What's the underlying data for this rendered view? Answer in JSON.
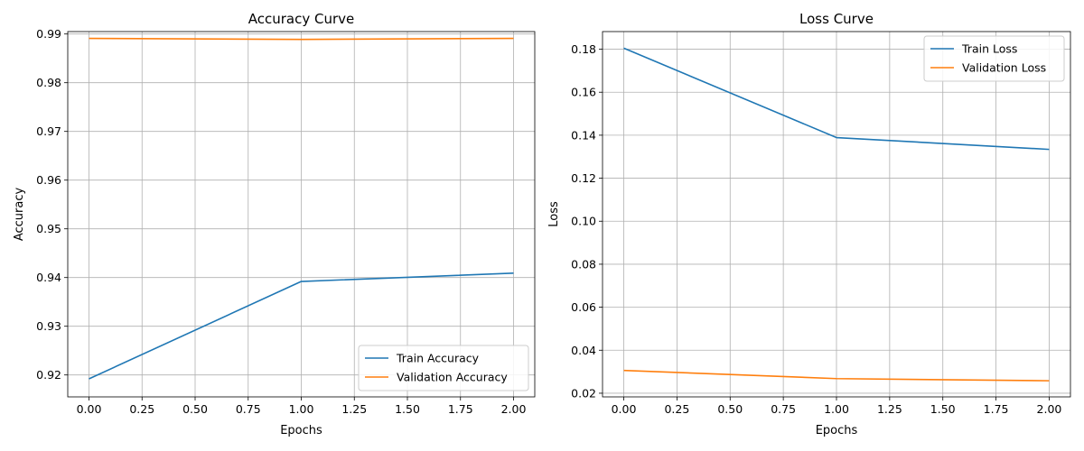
{
  "chart_data": [
    {
      "type": "line",
      "title": "Accuracy Curve",
      "xlabel": "Epochs",
      "ylabel": "Accuracy",
      "xlim": [
        -0.1,
        2.1
      ],
      "ylim": [
        0.9155,
        0.9905
      ],
      "xticks": [
        0.0,
        0.25,
        0.5,
        0.75,
        1.0,
        1.25,
        1.5,
        1.75,
        2.0
      ],
      "xtick_labels": [
        "0.00",
        "0.25",
        "0.50",
        "0.75",
        "1.00",
        "1.25",
        "1.50",
        "1.75",
        "2.00"
      ],
      "yticks": [
        0.92,
        0.93,
        0.94,
        0.95,
        0.96,
        0.97,
        0.98,
        0.99
      ],
      "ytick_labels": [
        "0.92",
        "0.93",
        "0.94",
        "0.95",
        "0.96",
        "0.97",
        "0.98",
        "0.99"
      ],
      "grid": true,
      "legend_position": "lower right",
      "x": [
        0,
        1,
        2
      ],
      "series": [
        {
          "name": "Train Accuracy",
          "color": "#1f77b4",
          "values": [
            0.9192,
            0.9392,
            0.9409
          ]
        },
        {
          "name": "Validation Accuracy",
          "color": "#ff7f0e",
          "values": [
            0.9891,
            0.9889,
            0.9891
          ]
        }
      ]
    },
    {
      "type": "line",
      "title": "Loss Curve",
      "xlabel": "Epochs",
      "ylabel": "Loss",
      "xlim": [
        -0.1,
        2.1
      ],
      "ylim": [
        0.0183,
        0.1882
      ],
      "xticks": [
        0.0,
        0.25,
        0.5,
        0.75,
        1.0,
        1.25,
        1.5,
        1.75,
        2.0
      ],
      "xtick_labels": [
        "0.00",
        "0.25",
        "0.50",
        "0.75",
        "1.00",
        "1.25",
        "1.50",
        "1.75",
        "2.00"
      ],
      "yticks": [
        0.02,
        0.04,
        0.06,
        0.08,
        0.1,
        0.12,
        0.14,
        0.16,
        0.18
      ],
      "ytick_labels": [
        "0.02",
        "0.04",
        "0.06",
        "0.08",
        "0.10",
        "0.12",
        "0.14",
        "0.16",
        "0.18"
      ],
      "grid": true,
      "legend_position": "upper right",
      "x": [
        0,
        1,
        2
      ],
      "series": [
        {
          "name": "Train Loss",
          "color": "#1f77b4",
          "values": [
            0.1805,
            0.1389,
            0.1334
          ]
        },
        {
          "name": "Validation Loss",
          "color": "#ff7f0e",
          "values": [
            0.0306,
            0.0268,
            0.0258
          ]
        }
      ]
    }
  ]
}
